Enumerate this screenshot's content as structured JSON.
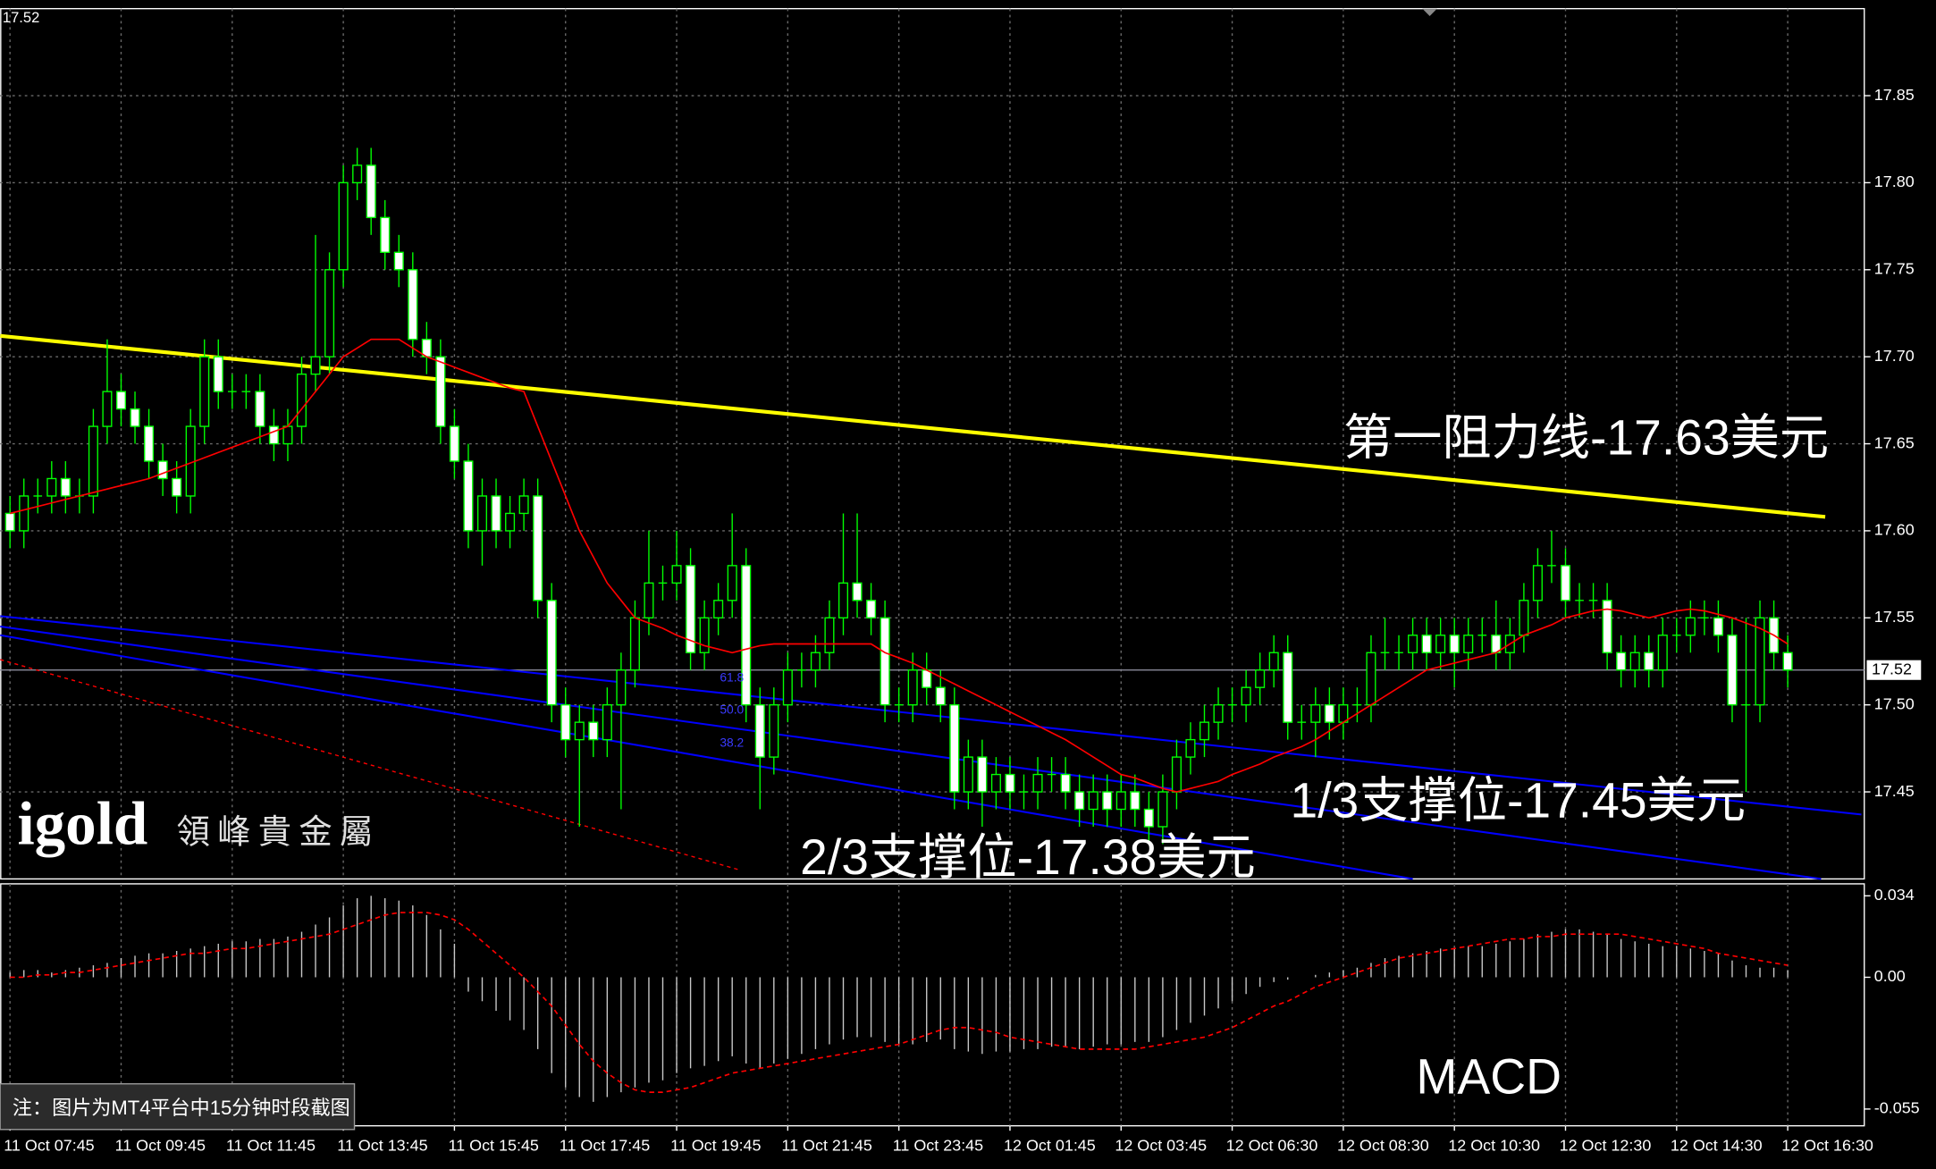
{
  "chart_data": [
    {
      "type": "candlestick",
      "categories": [
        "11 Oct 07:45",
        null,
        null,
        null,
        null,
        null,
        null,
        null,
        "11 Oct 09:45",
        null,
        null,
        null,
        null,
        null,
        null,
        null,
        "11 Oct 11:45",
        null,
        null,
        null,
        null,
        null,
        null,
        null,
        "11 Oct 13:45",
        null,
        null,
        null,
        null,
        null,
        null,
        null,
        "11 Oct 15:45",
        null,
        null,
        null,
        null,
        null,
        null,
        null,
        "11 Oct 17:45",
        null,
        null,
        null,
        null,
        null,
        null,
        null,
        "11 Oct 19:45",
        null,
        null,
        null,
        null,
        null,
        null,
        null,
        "11 Oct 21:45",
        null,
        null,
        null,
        null,
        null,
        null,
        null,
        "11 Oct 23:45",
        null,
        null,
        null,
        null,
        null,
        null,
        null,
        "12 Oct 01:45",
        null,
        null,
        null,
        null,
        null,
        null,
        null,
        "12 Oct 03:45",
        null,
        null,
        null,
        null,
        null,
        null,
        null,
        "12 Oct 06:30",
        null,
        null,
        null,
        null,
        null,
        null,
        null,
        "12 Oct 08:30",
        null,
        null,
        null,
        null,
        null,
        null,
        null,
        "12 Oct 10:30",
        null,
        null,
        null,
        null,
        null,
        null,
        null,
        "12 Oct 12:30",
        null,
        null,
        null,
        null,
        null,
        null,
        null,
        "12 Oct 14:30",
        null,
        null,
        null,
        null,
        null,
        null,
        null,
        "12 Oct 16:30"
      ],
      "open": [
        17.61,
        17.6,
        17.62,
        17.62,
        17.63,
        17.62,
        17.62,
        17.66,
        17.68,
        17.67,
        17.66,
        17.64,
        17.63,
        17.62,
        17.66,
        17.7,
        17.68,
        17.68,
        17.68,
        17.66,
        17.65,
        17.66,
        17.69,
        17.7,
        17.75,
        17.8,
        17.81,
        17.78,
        17.76,
        17.75,
        17.71,
        17.7,
        17.66,
        17.64,
        17.6,
        17.62,
        17.6,
        17.61,
        17.62,
        17.56,
        17.5,
        17.48,
        17.49,
        17.48,
        17.5,
        17.52,
        17.55,
        17.57,
        17.57,
        17.58,
        17.53,
        17.55,
        17.56,
        17.58,
        17.5,
        17.47,
        17.5,
        17.52,
        17.52,
        17.53,
        17.55,
        17.57,
        17.56,
        17.55,
        17.5,
        17.5,
        17.52,
        17.51,
        17.5,
        17.45,
        17.47,
        17.45,
        17.46,
        17.45,
        17.45,
        17.46,
        17.46,
        17.45,
        17.44,
        17.45,
        17.44,
        17.45,
        17.44,
        17.43,
        17.45,
        17.47,
        17.48,
        17.49,
        17.5,
        17.5,
        17.51,
        17.52,
        17.53,
        17.49,
        17.49,
        17.5,
        17.49,
        17.5,
        17.5,
        17.53,
        17.53,
        17.53,
        17.54,
        17.53,
        17.54,
        17.53,
        17.54,
        17.54,
        17.53,
        17.54,
        17.56,
        17.58,
        17.58,
        17.56,
        17.56,
        17.56,
        17.53,
        17.52,
        17.53,
        17.52,
        17.54,
        17.54,
        17.55,
        17.55,
        17.54,
        17.5,
        17.5,
        17.55,
        17.53
      ],
      "high": [
        17.62,
        17.63,
        17.63,
        17.64,
        17.64,
        17.63,
        17.67,
        17.71,
        17.69,
        17.68,
        17.67,
        17.65,
        17.64,
        17.67,
        17.71,
        17.71,
        17.69,
        17.69,
        17.69,
        17.67,
        17.67,
        17.7,
        17.77,
        17.76,
        17.81,
        17.82,
        17.82,
        17.79,
        17.77,
        17.76,
        17.72,
        17.71,
        17.67,
        17.65,
        17.63,
        17.63,
        17.62,
        17.63,
        17.63,
        17.57,
        17.51,
        17.5,
        17.5,
        17.51,
        17.53,
        17.56,
        17.6,
        17.58,
        17.6,
        17.59,
        17.56,
        17.57,
        17.61,
        17.59,
        17.51,
        17.51,
        17.53,
        17.53,
        17.54,
        17.56,
        17.61,
        17.61,
        17.57,
        17.56,
        17.51,
        17.53,
        17.53,
        17.52,
        17.51,
        17.48,
        17.48,
        17.47,
        17.47,
        17.46,
        17.47,
        17.47,
        17.47,
        17.46,
        17.46,
        17.46,
        17.46,
        17.46,
        17.45,
        17.46,
        17.48,
        17.49,
        17.5,
        17.51,
        17.51,
        17.52,
        17.53,
        17.54,
        17.54,
        17.5,
        17.51,
        17.51,
        17.51,
        17.51,
        17.54,
        17.55,
        17.54,
        17.55,
        17.55,
        17.55,
        17.55,
        17.55,
        17.55,
        17.56,
        17.55,
        17.57,
        17.59,
        17.6,
        17.59,
        17.57,
        17.57,
        17.57,
        17.54,
        17.54,
        17.54,
        17.55,
        17.55,
        17.56,
        17.56,
        17.56,
        17.55,
        17.55,
        17.56,
        17.56,
        17.54
      ],
      "low": [
        17.59,
        17.59,
        17.61,
        17.61,
        17.61,
        17.61,
        17.61,
        17.65,
        17.66,
        17.65,
        17.63,
        17.62,
        17.61,
        17.61,
        17.65,
        17.67,
        17.67,
        17.67,
        17.65,
        17.64,
        17.64,
        17.65,
        17.68,
        17.69,
        17.74,
        17.79,
        17.77,
        17.75,
        17.74,
        17.7,
        17.69,
        17.65,
        17.63,
        17.59,
        17.58,
        17.59,
        17.59,
        17.6,
        17.55,
        17.49,
        17.47,
        17.43,
        17.47,
        17.47,
        17.44,
        17.51,
        17.54,
        17.56,
        17.56,
        17.52,
        17.52,
        17.54,
        17.55,
        17.49,
        17.44,
        17.46,
        17.49,
        17.51,
        17.51,
        17.52,
        17.54,
        17.55,
        17.54,
        17.49,
        17.49,
        17.49,
        17.5,
        17.49,
        17.44,
        17.44,
        17.43,
        17.44,
        17.44,
        17.44,
        17.44,
        17.45,
        17.44,
        17.43,
        17.43,
        17.43,
        17.43,
        17.43,
        17.42,
        17.42,
        17.44,
        17.46,
        17.47,
        17.48,
        17.49,
        17.49,
        17.5,
        17.51,
        17.48,
        17.48,
        17.47,
        17.48,
        17.48,
        17.49,
        17.49,
        17.52,
        17.52,
        17.52,
        17.52,
        17.52,
        17.51,
        17.52,
        17.53,
        17.52,
        17.52,
        17.53,
        17.55,
        17.57,
        17.55,
        17.55,
        17.55,
        17.52,
        17.51,
        17.51,
        17.51,
        17.51,
        17.53,
        17.53,
        17.54,
        17.53,
        17.49,
        17.45,
        17.49,
        17.52,
        17.51
      ],
      "close": [
        17.6,
        17.62,
        17.62,
        17.63,
        17.62,
        17.62,
        17.66,
        17.68,
        17.67,
        17.66,
        17.64,
        17.63,
        17.62,
        17.66,
        17.7,
        17.68,
        17.68,
        17.68,
        17.66,
        17.65,
        17.66,
        17.69,
        17.7,
        17.75,
        17.8,
        17.81,
        17.78,
        17.76,
        17.75,
        17.71,
        17.7,
        17.66,
        17.64,
        17.6,
        17.62,
        17.6,
        17.61,
        17.62,
        17.56,
        17.5,
        17.48,
        17.49,
        17.48,
        17.5,
        17.52,
        17.55,
        17.57,
        17.57,
        17.58,
        17.53,
        17.55,
        17.56,
        17.58,
        17.5,
        17.47,
        17.5,
        17.52,
        17.52,
        17.53,
        17.55,
        17.57,
        17.56,
        17.55,
        17.5,
        17.5,
        17.52,
        17.51,
        17.5,
        17.45,
        17.47,
        17.45,
        17.46,
        17.45,
        17.45,
        17.46,
        17.46,
        17.45,
        17.44,
        17.45,
        17.44,
        17.45,
        17.44,
        17.43,
        17.45,
        17.47,
        17.48,
        17.49,
        17.5,
        17.5,
        17.51,
        17.52,
        17.53,
        17.49,
        17.49,
        17.5,
        17.49,
        17.5,
        17.5,
        17.53,
        17.53,
        17.53,
        17.54,
        17.53,
        17.54,
        17.53,
        17.54,
        17.54,
        17.53,
        17.54,
        17.56,
        17.58,
        17.58,
        17.56,
        17.56,
        17.56,
        17.53,
        17.52,
        17.53,
        17.52,
        17.54,
        17.54,
        17.55,
        17.55,
        17.54,
        17.5,
        17.5,
        17.55,
        17.53,
        17.52
      ],
      "wick_color": "#00ff00",
      "bull_fill": "#000000",
      "bear_fill": "#ffffff",
      "ma": {
        "color": "#ff0000",
        "values": [
          17.61,
          17.612,
          17.614,
          17.616,
          17.618,
          17.62,
          17.622,
          17.624,
          17.626,
          17.628,
          17.63,
          17.633,
          17.636,
          17.639,
          17.642,
          17.645,
          17.648,
          17.651,
          17.654,
          17.657,
          17.66,
          17.67,
          17.68,
          17.69,
          17.7,
          17.705,
          17.71,
          17.71,
          17.71,
          17.705,
          17.7,
          17.697,
          17.694,
          17.691,
          17.688,
          17.685,
          17.682,
          17.68,
          17.66,
          17.64,
          17.62,
          17.6,
          17.585,
          17.57,
          17.56,
          17.55,
          17.547,
          17.544,
          17.54,
          17.537,
          17.534,
          17.532,
          17.53,
          17.532,
          17.534,
          17.535,
          17.535,
          17.535,
          17.535,
          17.535,
          17.535,
          17.535,
          17.535,
          17.53,
          17.527,
          17.524,
          17.52,
          17.516,
          17.512,
          17.508,
          17.504,
          17.5,
          17.496,
          17.492,
          17.488,
          17.484,
          17.48,
          17.475,
          17.47,
          17.465,
          17.46,
          17.458,
          17.455,
          17.452,
          17.45,
          17.452,
          17.454,
          17.456,
          17.46,
          17.463,
          17.466,
          17.47,
          17.473,
          17.476,
          17.48,
          17.485,
          17.49,
          17.495,
          17.5,
          17.505,
          17.51,
          17.515,
          17.52,
          17.522,
          17.524,
          17.526,
          17.528,
          17.53,
          17.535,
          17.54,
          17.543,
          17.546,
          17.55,
          17.552,
          17.554,
          17.555,
          17.554,
          17.552,
          17.55,
          17.552,
          17.554,
          17.555,
          17.554,
          17.552,
          17.55,
          17.547,
          17.544,
          17.54,
          17.535
        ]
      },
      "trendlines": [
        {
          "color": "#ffff00",
          "width": 3,
          "dashed": false,
          "points": [
            [
              -0.7,
              17.712
            ],
            [
              130.7,
              17.608
            ]
          ]
        },
        {
          "color": "#0000ff",
          "width": 1.5,
          "dashed": false,
          "points": [
            [
              -0.7,
              17.551
            ],
            [
              133.3,
              17.437
            ]
          ]
        },
        {
          "color": "#0000ff",
          "width": 1.5,
          "dashed": false,
          "points": [
            [
              -0.7,
              17.545
            ],
            [
              130.4,
              17.4
            ]
          ]
        },
        {
          "color": "#0000ff",
          "width": 1.5,
          "dashed": false,
          "points": [
            [
              -0.7,
              17.54
            ],
            [
              101,
              17.4
            ]
          ]
        },
        {
          "color": "#ff0000",
          "width": 1,
          "dashed": true,
          "points": [
            [
              -0.7,
              17.526
            ],
            [
              52.6,
              17.405
            ]
          ]
        }
      ],
      "last_price": 17.52,
      "ylim": [
        17.4,
        17.9
      ],
      "yticks": [
        17.45,
        {
          "value": 17.5,
          "label": "17.50"
        },
        17.55,
        {
          "value": 17.6,
          "label": "17.60"
        },
        17.65,
        {
          "value": 17.7,
          "label": "17.70"
        },
        17.75,
        {
          "value": 17.8,
          "label": "17.80"
        },
        17.85
      ],
      "grid": true,
      "fib_labels": [
        "61.8",
        "50.0",
        "38.2"
      ],
      "annotations": [
        "第一阻力线-17.63美元",
        "1/3支撑位-17.45美元",
        "2/3支撑位-17.38美元"
      ],
      "logo": {
        "brand": "igold",
        "name": "領峰貴金屬"
      },
      "note": "注：图片为MT4平台中15分钟时段截图"
    },
    {
      "type": "macd",
      "title": "MACD",
      "histogram": {
        "color": "#c8c8c8",
        "values": [
          0.002,
          0.003,
          0.003,
          0.002,
          0.003,
          0.004,
          0.005,
          0.006,
          0.008,
          0.009,
          0.01,
          0.01,
          0.011,
          0.012,
          0.013,
          0.014,
          0.015,
          0.015,
          0.016,
          0.016,
          0.017,
          0.019,
          0.022,
          0.025,
          0.03,
          0.033,
          0.034,
          0.033,
          0.032,
          0.03,
          0.026,
          0.02,
          0.014,
          -0.006,
          -0.01,
          -0.014,
          -0.018,
          -0.022,
          -0.03,
          -0.04,
          -0.046,
          -0.05,
          -0.052,
          -0.05,
          -0.048,
          -0.046,
          -0.044,
          -0.043,
          -0.04,
          -0.038,
          -0.037,
          -0.035,
          -0.033,
          -0.036,
          -0.038,
          -0.036,
          -0.034,
          -0.032,
          -0.03,
          -0.028,
          -0.026,
          -0.025,
          -0.025,
          -0.027,
          -0.028,
          -0.028,
          -0.027,
          -0.026,
          -0.03,
          -0.031,
          -0.032,
          -0.031,
          -0.031,
          -0.03,
          -0.03,
          -0.029,
          -0.029,
          -0.03,
          -0.029,
          -0.028,
          -0.028,
          -0.027,
          -0.027,
          -0.025,
          -0.022,
          -0.019,
          -0.016,
          -0.013,
          -0.01,
          -0.007,
          -0.004,
          -0.002,
          -0.001,
          0.0,
          0.001,
          0.002,
          0.003,
          0.004,
          0.006,
          0.008,
          0.009,
          0.01,
          0.011,
          0.012,
          0.012,
          0.013,
          0.013,
          0.014,
          0.015,
          0.016,
          0.018,
          0.019,
          0.02,
          0.02,
          0.019,
          0.018,
          0.016,
          0.015,
          0.014,
          0.013,
          0.013,
          0.012,
          0.011,
          0.01,
          0.007,
          0.005,
          0.004,
          0.004,
          0.003
        ]
      },
      "signal": {
        "color": "#ff0000",
        "values": [
          0.0,
          0.0,
          0.001,
          0.001,
          0.002,
          0.002,
          0.003,
          0.004,
          0.005,
          0.006,
          0.007,
          0.008,
          0.009,
          0.01,
          0.01,
          0.011,
          0.012,
          0.012,
          0.013,
          0.014,
          0.015,
          0.016,
          0.017,
          0.018,
          0.02,
          0.022,
          0.024,
          0.026,
          0.027,
          0.027,
          0.027,
          0.026,
          0.024,
          0.02,
          0.015,
          0.01,
          0.005,
          0.0,
          -0.006,
          -0.012,
          -0.02,
          -0.028,
          -0.035,
          -0.04,
          -0.044,
          -0.047,
          -0.048,
          -0.048,
          -0.047,
          -0.046,
          -0.044,
          -0.042,
          -0.04,
          -0.039,
          -0.038,
          -0.037,
          -0.036,
          -0.035,
          -0.034,
          -0.033,
          -0.032,
          -0.031,
          -0.03,
          -0.029,
          -0.028,
          -0.026,
          -0.024,
          -0.022,
          -0.021,
          -0.021,
          -0.022,
          -0.023,
          -0.025,
          -0.026,
          -0.027,
          -0.028,
          -0.029,
          -0.03,
          -0.03,
          -0.03,
          -0.03,
          -0.03,
          -0.029,
          -0.028,
          -0.027,
          -0.026,
          -0.025,
          -0.023,
          -0.021,
          -0.018,
          -0.015,
          -0.012,
          -0.01,
          -0.007,
          -0.004,
          -0.002,
          0.0,
          0.002,
          0.004,
          0.006,
          0.008,
          0.009,
          0.01,
          0.011,
          0.012,
          0.013,
          0.014,
          0.015,
          0.016,
          0.016,
          0.017,
          0.017,
          0.018,
          0.018,
          0.018,
          0.018,
          0.018,
          0.017,
          0.016,
          0.015,
          0.014,
          0.013,
          0.012,
          0.01,
          0.009,
          0.008,
          0.007,
          0.006,
          0.005
        ]
      },
      "ylim": [
        -0.062,
        0.039
      ],
      "yticks": [
        0.034,
        {
          "value": 0,
          "label": "0.00"
        },
        -0.055
      ]
    }
  ]
}
